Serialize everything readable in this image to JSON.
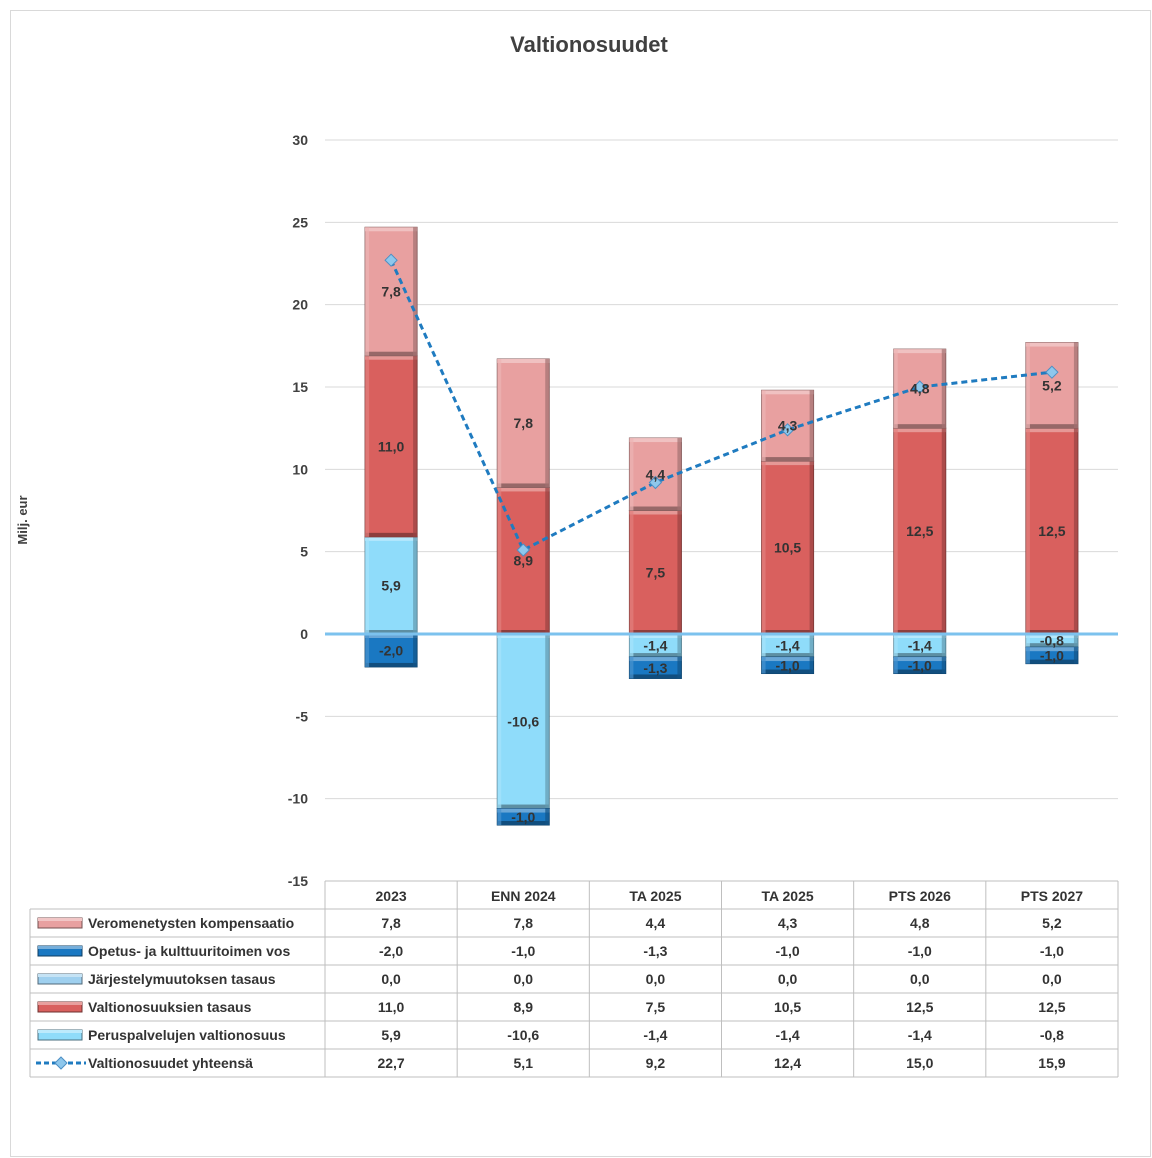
{
  "chart_data": {
    "type": "bar",
    "stacked": true,
    "title": "Valtionosuudet",
    "ylabel": "Milj. eur",
    "ylim": [
      -15,
      30
    ],
    "yticks": [
      30,
      25,
      20,
      15,
      10,
      5,
      0,
      -5,
      -10,
      -15
    ],
    "grid": true,
    "legend_placement": "data-table-below",
    "categories": [
      "2023",
      "ENN 2024",
      "TA 2025",
      "TA 2025",
      "PTS 2026",
      "PTS 2027"
    ],
    "series": [
      {
        "name": "Veromenetysten kompensaatio",
        "kind": "bar",
        "color": "#e8a0a0",
        "values": [
          7.8,
          7.8,
          4.4,
          4.3,
          4.8,
          5.2
        ],
        "labels": [
          "7,8",
          "7,8",
          "4,4",
          "4,3",
          "4,8",
          "5,2"
        ]
      },
      {
        "name": "Opetus- ja kulttuuritoimen vos",
        "kind": "bar",
        "color": "#1a78c2",
        "values": [
          -2.0,
          -1.0,
          -1.3,
          -1.0,
          -1.0,
          -1.0
        ],
        "labels": [
          "-2,0",
          "-1,0",
          "-1,3",
          "-1,0",
          "-1,0",
          "-1,0"
        ]
      },
      {
        "name": "Järjestelymuutoksen tasaus",
        "kind": "bar",
        "color": "#9fd0ef",
        "values": [
          0.0,
          0.0,
          0.0,
          0.0,
          0.0,
          0.0
        ],
        "labels": [
          "0,0",
          "0,0",
          "0,0",
          "0,0",
          "0,0",
          "0,0"
        ]
      },
      {
        "name": "Valtionosuuksien tasaus",
        "kind": "bar",
        "color": "#d9605e",
        "values": [
          11.0,
          8.9,
          7.5,
          10.5,
          12.5,
          12.5
        ],
        "labels": [
          "11,0",
          "8,9",
          "7,5",
          "10,5",
          "12,5",
          "12,5"
        ]
      },
      {
        "name": "Peruspalvelujen valtionosuus",
        "kind": "bar",
        "color": "#8fdcfa",
        "values": [
          5.9,
          -10.6,
          -1.4,
          -1.4,
          -1.4,
          -0.8
        ],
        "labels": [
          "5,9",
          "-10,6",
          "-1,4",
          "-1,4",
          "-1,4",
          "-0,8"
        ]
      },
      {
        "name": "Valtionosuudet yhteensä",
        "kind": "line",
        "color": "#1f7bc0",
        "values": [
          22.7,
          5.1,
          9.2,
          12.4,
          15.0,
          15.9
        ],
        "labels": [
          "22,7",
          "5,1",
          "9,2",
          "12,4",
          "15,0",
          "15,9"
        ]
      }
    ]
  }
}
